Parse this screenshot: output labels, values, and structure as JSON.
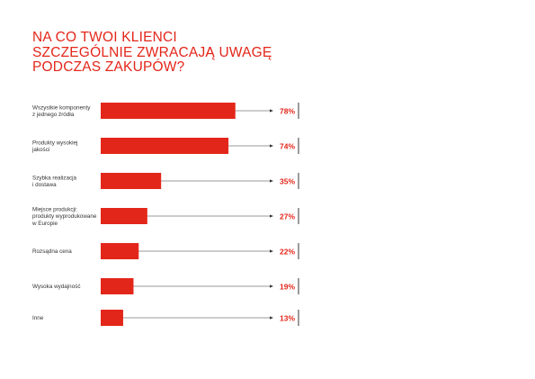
{
  "chart_data": {
    "type": "bar",
    "orientation": "horizontal",
    "title": [
      "NA CO TWOI KLIENCI",
      "SZCZEGÓLNIE ZWRACAJĄ UWAGĘ",
      "PODCZAS ZAKUPÓW?"
    ],
    "xlabel": "",
    "ylabel": "",
    "xlim": [
      0,
      100
    ],
    "grid": false,
    "categories": [
      [
        "Wszystkie komponenty",
        "z jednego źródła"
      ],
      [
        "Produkty wysokiej",
        "jakości"
      ],
      [
        "Szybka realizacja",
        "i dostawa"
      ],
      [
        "Miejsce produkcji:",
        "produkty wyprodukowane",
        "w Europie"
      ],
      [
        "Rozsądna cena"
      ],
      [
        "Wysoka wydajność"
      ],
      [
        "Inne"
      ]
    ],
    "values": [
      78,
      74,
      35,
      27,
      22,
      19,
      13
    ],
    "value_labels": [
      "78%",
      "74%",
      "35%",
      "27%",
      "22%",
      "19%",
      "13%"
    ],
    "colors": {
      "bar": "#e3261a",
      "value_label": "#e3261a",
      "title": "#e3261a",
      "category_label": "#333333",
      "leader_line": "#333333",
      "end_marker": "#222222"
    }
  }
}
